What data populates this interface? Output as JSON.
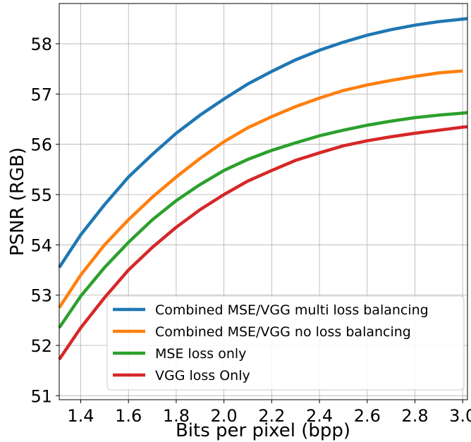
{
  "chart_data": {
    "type": "line",
    "title": "",
    "xlabel": "Bits per pixel (bpp)",
    "ylabel": "PSNR (RGB)",
    "xlim": [
      1.31,
      3.02
    ],
    "ylim": [
      50.92,
      58.8
    ],
    "xticks": [
      1.4,
      1.6,
      1.8,
      2.0,
      2.2,
      2.4,
      2.6,
      2.8,
      3.0
    ],
    "xtick_labels": [
      "1.4",
      "1.6",
      "1.8",
      "2.0",
      "2.2",
      "2.4",
      "2.6",
      "2.8",
      "3.0"
    ],
    "yticks": [
      51,
      52,
      53,
      54,
      55,
      56,
      57,
      58
    ],
    "ytick_labels": [
      "51",
      "52",
      "53",
      "54",
      "55",
      "56",
      "57",
      "58"
    ],
    "grid": true,
    "legend_position": "lower-right",
    "series": [
      {
        "name": "Combined MSE/VGG multi loss balancing",
        "color": "#1f77b4",
        "x": [
          1.31,
          1.4,
          1.5,
          1.6,
          1.7,
          1.8,
          1.9,
          2.0,
          2.1,
          2.2,
          2.3,
          2.4,
          2.5,
          2.6,
          2.7,
          2.8,
          2.9,
          3.0,
          3.02
        ],
        "y": [
          53.55,
          54.2,
          54.8,
          55.35,
          55.8,
          56.22,
          56.58,
          56.9,
          57.2,
          57.45,
          57.68,
          57.87,
          58.03,
          58.17,
          58.28,
          58.37,
          58.44,
          58.49,
          58.5
        ]
      },
      {
        "name": "Combined MSE/VGG no loss balancing",
        "color": "#ff7f0e",
        "x": [
          1.31,
          1.4,
          1.5,
          1.6,
          1.7,
          1.8,
          1.9,
          2.0,
          2.1,
          2.2,
          2.3,
          2.4,
          2.5,
          2.6,
          2.7,
          2.8,
          2.9,
          3.0
        ],
        "y": [
          52.75,
          53.4,
          54.0,
          54.5,
          54.95,
          55.35,
          55.72,
          56.05,
          56.33,
          56.55,
          56.75,
          56.92,
          57.07,
          57.18,
          57.27,
          57.35,
          57.42,
          57.46
        ]
      },
      {
        "name": "MSE loss only",
        "color": "#2ca02c",
        "x": [
          1.31,
          1.4,
          1.5,
          1.6,
          1.7,
          1.8,
          1.9,
          2.0,
          2.1,
          2.2,
          2.3,
          2.4,
          2.5,
          2.6,
          2.7,
          2.8,
          2.9,
          3.0,
          3.02
        ],
        "y": [
          52.35,
          52.98,
          53.55,
          54.05,
          54.5,
          54.88,
          55.2,
          55.48,
          55.7,
          55.88,
          56.03,
          56.17,
          56.28,
          56.38,
          56.46,
          56.53,
          56.58,
          56.62,
          56.63
        ]
      },
      {
        "name": "VGG loss Only",
        "color": "#d62728",
        "x": [
          1.31,
          1.4,
          1.5,
          1.6,
          1.7,
          1.8,
          1.9,
          2.0,
          2.1,
          2.2,
          2.3,
          2.4,
          2.5,
          2.6,
          2.7,
          2.8,
          2.9,
          3.0,
          3.02
        ],
        "y": [
          51.72,
          52.35,
          52.95,
          53.5,
          53.95,
          54.35,
          54.7,
          55.0,
          55.27,
          55.48,
          55.68,
          55.83,
          55.97,
          56.07,
          56.15,
          56.22,
          56.28,
          56.34,
          56.35
        ]
      }
    ]
  }
}
